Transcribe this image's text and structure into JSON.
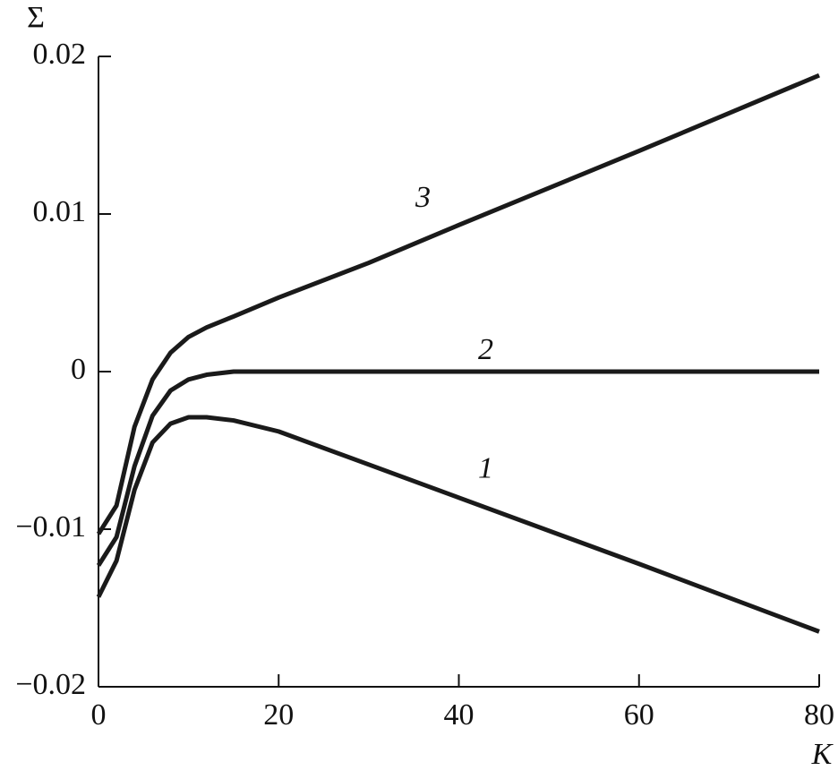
{
  "chart_data": {
    "type": "line",
    "x_label": "K",
    "y_label": "Σ",
    "x": [
      0,
      2,
      4,
      6,
      8,
      10,
      12,
      15,
      20,
      30,
      40,
      60,
      80
    ],
    "series": [
      {
        "name": "1",
        "color": "#1a1a1a",
        "values": [
          -0.0143,
          -0.012,
          -0.0075,
          -0.0045,
          -0.0033,
          -0.0029,
          -0.0029,
          -0.0031,
          -0.0038,
          -0.0059,
          -0.008,
          -0.0122,
          -0.0165
        ]
      },
      {
        "name": "2",
        "color": "#1a1a1a",
        "values": [
          -0.0123,
          -0.0105,
          -0.006,
          -0.0028,
          -0.0012,
          -0.0005,
          -0.0002,
          0,
          0,
          0,
          0,
          0,
          0
        ]
      },
      {
        "name": "3",
        "color": "#1a1a1a",
        "values": [
          -0.0103,
          -0.0085,
          -0.0035,
          -0.0005,
          0.0012,
          0.0022,
          0.0028,
          0.0035,
          0.0047,
          0.0069,
          0.0093,
          0.014,
          0.0188
        ]
      }
    ],
    "xlim": [
      0,
      80
    ],
    "xticks": [
      0,
      20,
      40,
      60,
      80
    ],
    "ylim": [
      -0.02,
      0.02
    ],
    "yticks": [
      {
        "value": -0.02,
        "label": "−0.02"
      },
      {
        "value": -0.01,
        "label": "−0.01"
      },
      0,
      0.01,
      0.02
    ]
  }
}
